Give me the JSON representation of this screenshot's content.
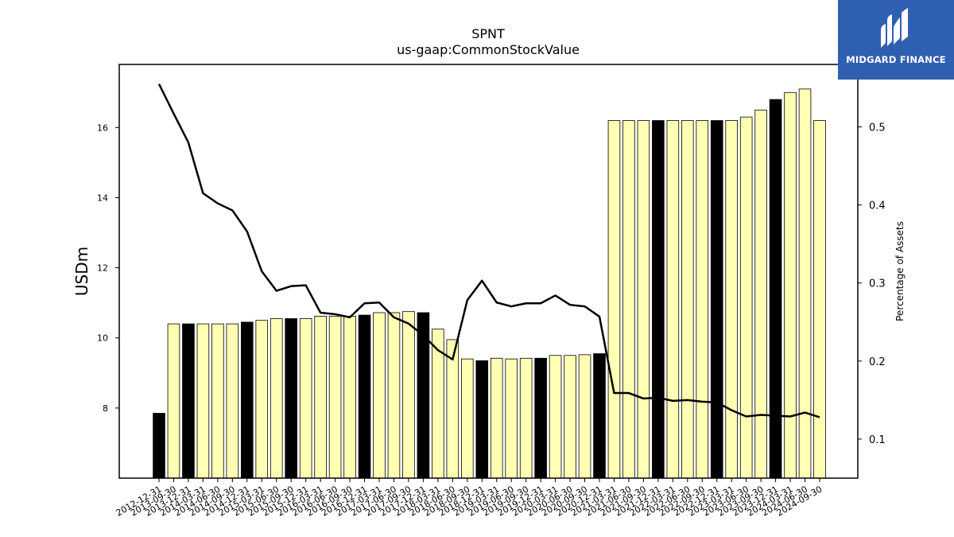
{
  "chart_data": {
    "type": "bar",
    "title": "SPNT",
    "subtitle": "us-gaap:CommonStockValue",
    "ylabel": "USDm",
    "y2label": "Percentage of Assets",
    "ylim": [
      6.0,
      17.8
    ],
    "y2lim": [
      0.05,
      0.58
    ],
    "yticks": [
      8,
      10,
      12,
      14,
      16
    ],
    "y2ticks": [
      0.1,
      0.2,
      0.3,
      0.4,
      0.5
    ],
    "categories": [
      "2012-12-31",
      "2013-09-30",
      "2013-12-31",
      "2014-03-31",
      "2014-06-30",
      "2014-09-30",
      "2014-12-31",
      "2015-03-31",
      "2015-06-30",
      "2015-09-30",
      "2015-12-31",
      "2016-03-31",
      "2016-06-30",
      "2016-09-30",
      "2016-12-31",
      "2017-03-31",
      "2017-06-30",
      "2017-09-30",
      "2017-12-31",
      "2018-03-31",
      "2018-06-30",
      "2018-09-30",
      "2018-12-31",
      "2019-03-31",
      "2019-06-30",
      "2019-09-30",
      "2019-12-31",
      "2020-03-31",
      "2020-06-30",
      "2020-09-30",
      "2020-12-31",
      "2021-03-31",
      "2021-06-30",
      "2021-09-30",
      "2021-12-31",
      "2022-03-31",
      "2022-06-30",
      "2022-09-30",
      "2022-12-31",
      "2023-03-31",
      "2023-06-30",
      "2023-09-30",
      "2023-12-31",
      "2024-03-31",
      "2024-06-30",
      "2024-09-30"
    ],
    "series": [
      {
        "type": "bar",
        "values": [
          7.85,
          10.4,
          10.4,
          10.4,
          10.4,
          10.4,
          10.45,
          10.5,
          10.55,
          10.55,
          10.55,
          10.62,
          10.62,
          10.62,
          10.65,
          10.72,
          10.72,
          10.75,
          10.72,
          10.25,
          9.95,
          9.4,
          9.35,
          9.42,
          9.4,
          9.42,
          9.42,
          9.5,
          9.5,
          9.52,
          9.55,
          16.2,
          16.2,
          16.2,
          16.2,
          16.2,
          16.2,
          16.2,
          16.2,
          16.2,
          16.3,
          16.5,
          16.8,
          17.0,
          17.1,
          16.2
        ],
        "highlight": [
          true,
          false,
          true,
          false,
          false,
          false,
          true,
          false,
          false,
          true,
          false,
          false,
          false,
          false,
          true,
          false,
          false,
          false,
          true,
          false,
          false,
          false,
          true,
          false,
          false,
          false,
          true,
          false,
          false,
          false,
          true,
          false,
          false,
          false,
          true,
          false,
          false,
          false,
          true,
          false,
          false,
          false,
          true,
          false,
          false,
          false
        ]
      },
      {
        "type": "line",
        "axis": "right",
        "values": [
          0.555,
          0.517,
          0.48,
          0.415,
          0.402,
          0.393,
          0.366,
          0.315,
          0.29,
          0.296,
          0.297,
          0.262,
          0.26,
          0.256,
          0.274,
          0.275,
          0.256,
          0.248,
          0.233,
          0.214,
          0.202,
          0.278,
          0.303,
          0.275,
          0.27,
          0.274,
          0.274,
          0.284,
          0.272,
          0.27,
          0.257,
          0.159,
          0.159,
          0.152,
          0.153,
          0.149,
          0.15,
          0.148,
          0.147,
          0.137,
          0.129,
          0.131,
          0.13,
          0.129,
          0.134,
          0.128
        ]
      }
    ],
    "colors": {
      "bar": "#ffffb3",
      "bar_highlight": "#000000",
      "line": "#000000"
    },
    "grid": false,
    "legend": "none"
  },
  "logo": {
    "text": "MIDGARD FINANCE"
  }
}
